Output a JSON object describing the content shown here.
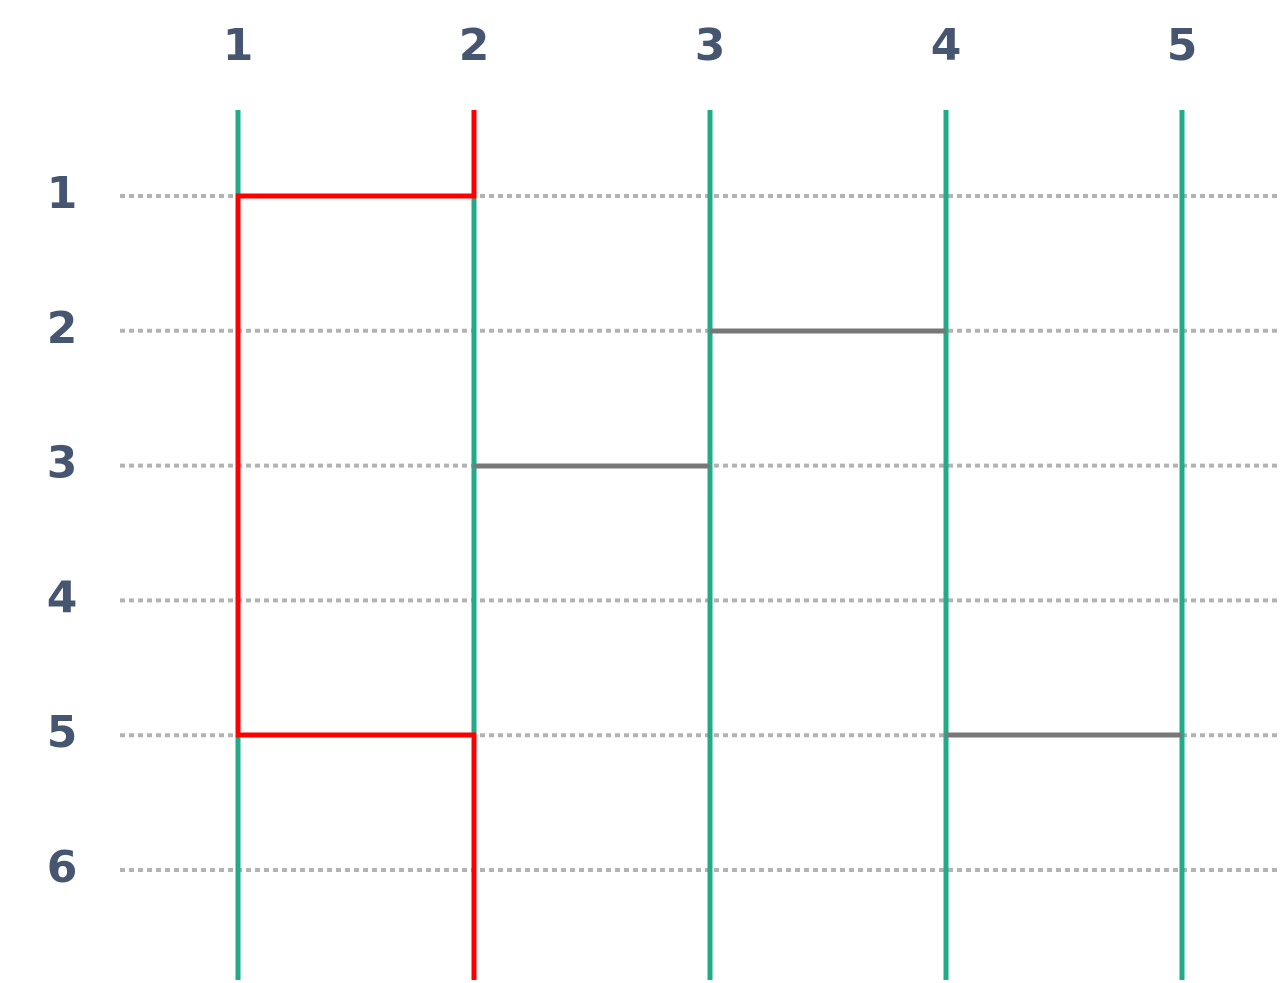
{
  "columns": {
    "labels": [
      "1",
      "2",
      "3",
      "4",
      "5"
    ]
  },
  "rows": {
    "labels": [
      "1",
      "2",
      "3",
      "4",
      "5",
      "6"
    ]
  }
}
